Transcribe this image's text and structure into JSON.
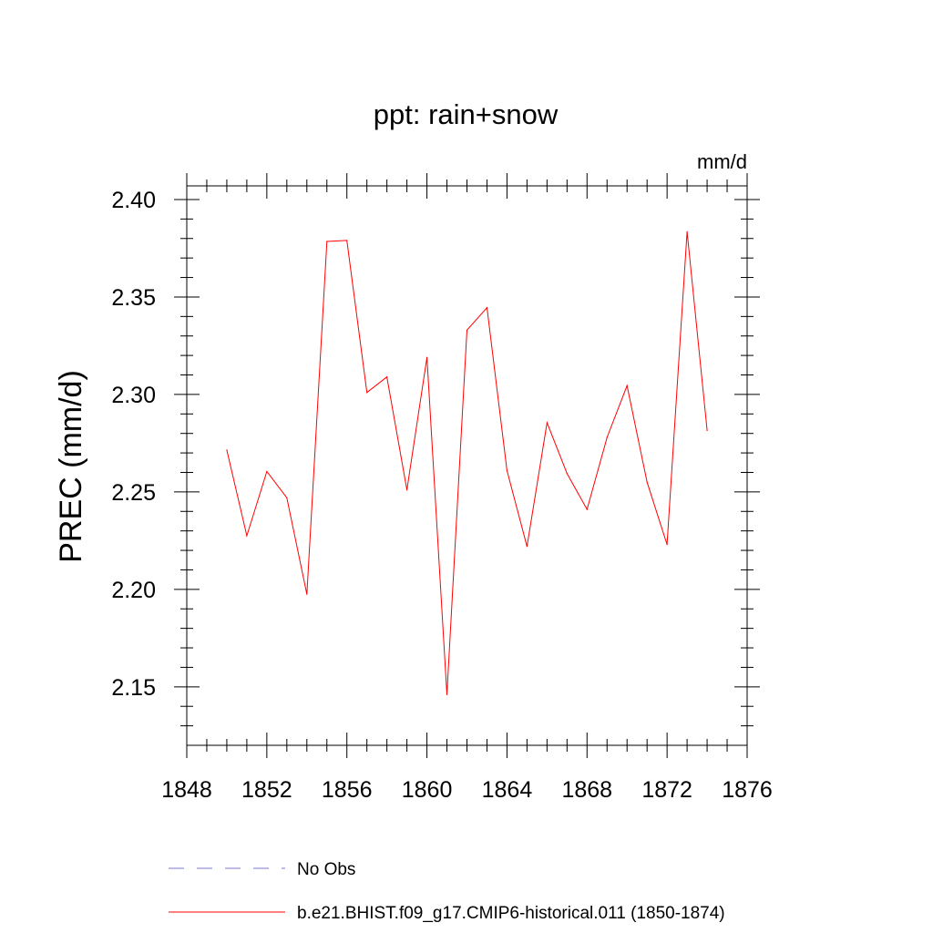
{
  "chart_data": {
    "type": "line",
    "title": "ppt: rain+snow",
    "units": "mm/d",
    "ylabel": "PREC  (mm/d)",
    "xlabel": "",
    "xlim": [
      1848,
      1876
    ],
    "ylim": [
      2.12,
      2.407
    ],
    "x_ticks": [
      1848,
      1852,
      1856,
      1860,
      1864,
      1868,
      1872,
      1876
    ],
    "x_tick_labels": [
      "1848",
      "1852",
      "1856",
      "1860",
      "1864",
      "1868",
      "1872",
      "1876"
    ],
    "y_ticks": [
      2.15,
      2.2,
      2.25,
      2.3,
      2.35,
      2.4
    ],
    "y_tick_labels": [
      "2.15",
      "2.20",
      "2.25",
      "2.30",
      "2.35",
      "2.40"
    ],
    "grid": false,
    "legend_position": "bottom",
    "series": [
      {
        "name": "No Obs",
        "color": "#7777cc",
        "dash": "dashed",
        "x": [],
        "y": []
      },
      {
        "name": "b.e21.BHIST.f09_g17.CMIP6-historical.011 (1850-1874)",
        "color": "#ff0000",
        "dash": "solid",
        "x": [
          1850,
          1851,
          1852,
          1853,
          1854,
          1855,
          1856,
          1857,
          1858,
          1859,
          1860,
          1861,
          1862,
          1863,
          1864,
          1865,
          1866,
          1867,
          1868,
          1869,
          1870,
          1871,
          1872,
          1873,
          1874
        ],
        "y": [
          2.2715,
          2.2275,
          2.2605,
          2.247,
          2.1975,
          2.3785,
          2.379,
          2.301,
          2.309,
          2.251,
          2.319,
          2.146,
          2.333,
          2.3445,
          2.261,
          2.222,
          2.2855,
          2.2595,
          2.241,
          2.278,
          2.3045,
          2.255,
          2.223,
          2.3835,
          2.2815
        ]
      }
    ]
  }
}
